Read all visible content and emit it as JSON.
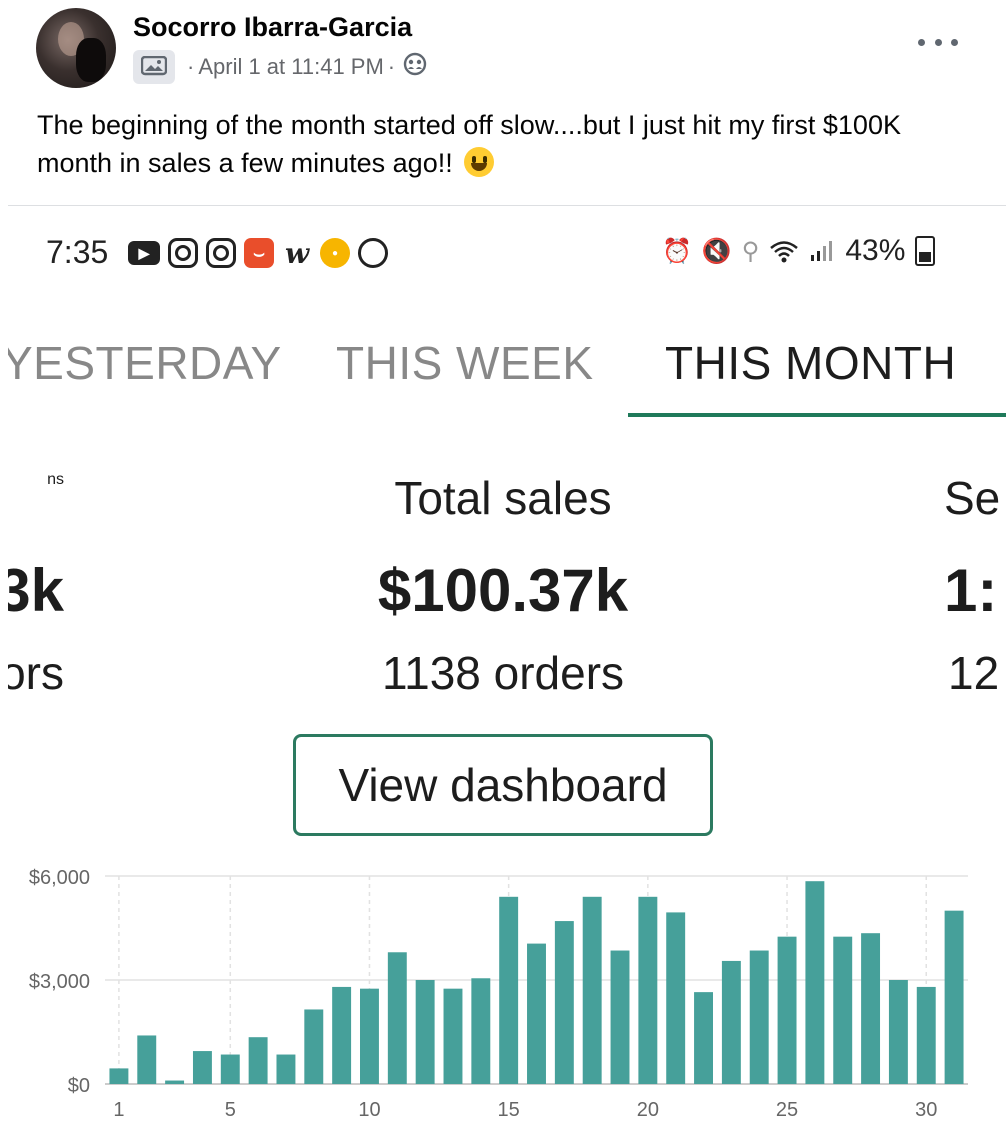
{
  "post": {
    "author": "Socorro Ibarra-Garcia",
    "date": "April 1 at 11:41 PM",
    "separator": "·",
    "caption": "The beginning of the month started off slow....but I just hit my first $100K month in sales a few minutes ago!!",
    "icons": [
      "photo-memory-icon",
      "friends-audience-icon",
      "more-options-icon",
      "grinning-emoji"
    ]
  },
  "screenshot": {
    "status_bar": {
      "time": "7:35",
      "battery": "43%",
      "icons": [
        "youtube-icon",
        "instagram-icon",
        "instagram-icon",
        "aliexpress-icon",
        "wish-icon",
        "app-icon",
        "app-icon",
        "alarm-icon",
        "mute-icon",
        "location-icon",
        "wifi-icon",
        "signal-icon",
        "battery-icon"
      ]
    },
    "tabs": [
      {
        "label": "YESTERDAY",
        "active": false
      },
      {
        "label": "THIS WEEK",
        "active": false
      },
      {
        "label": "THIS MONTH",
        "active": true
      }
    ],
    "accent_color": "#1f7a5a",
    "bar_color": "#46a09a",
    "metrics": {
      "left": {
        "label": "ns",
        "value": "3k",
        "sub": "ors"
      },
      "center": {
        "label": "Total sales",
        "value": "$100.37k",
        "sub": "1138 orders"
      },
      "right": {
        "label": "Se",
        "value": "1:",
        "sub": "12"
      }
    },
    "button_label": "View dashboard"
  },
  "chart_data": {
    "type": "bar",
    "x": [
      1,
      2,
      3,
      4,
      5,
      6,
      7,
      8,
      9,
      10,
      11,
      12,
      13,
      14,
      15,
      16,
      17,
      18,
      19,
      20,
      21,
      22,
      23,
      24,
      25,
      26,
      27,
      28,
      29,
      30,
      31
    ],
    "values": [
      450,
      1400,
      100,
      950,
      850,
      1350,
      850,
      2150,
      2800,
      2750,
      3800,
      3000,
      2750,
      3050,
      5400,
      4050,
      4700,
      5400,
      3850,
      5400,
      4950,
      2650,
      3550,
      3850,
      4250,
      5850,
      4250,
      4350,
      3000,
      2800,
      5000
    ],
    "y_ticks": [
      "$0",
      "$3,000",
      "$6,000"
    ],
    "y_tick_values": [
      0,
      3000,
      6000
    ],
    "x_ticks": [
      "1",
      "5",
      "10",
      "15",
      "20",
      "25",
      "30"
    ],
    "x_tick_values": [
      1,
      5,
      10,
      15,
      20,
      25,
      30
    ],
    "ylim": [
      0,
      6000
    ],
    "grid": true
  }
}
